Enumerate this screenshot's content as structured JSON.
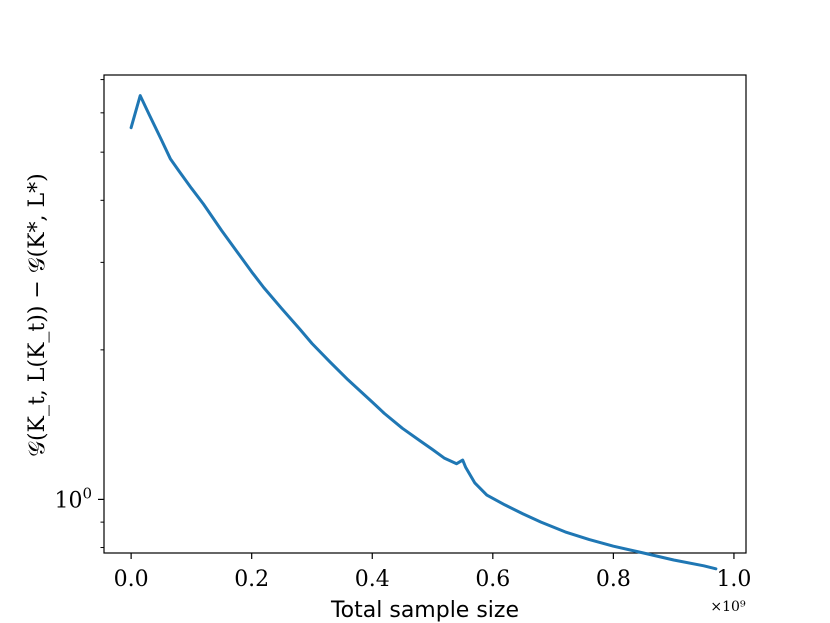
{
  "chart_data": {
    "type": "line",
    "xlabel": "Total sample size",
    "ylabel": "𝒢(K_t, L(K_t)) − 𝒢(K*, L*)",
    "x_offset_label": "×10⁹",
    "x_ticks": [
      "0.0",
      "0.2",
      "0.4",
      "0.6",
      "0.8",
      "1.0"
    ],
    "y_ticks": [
      {
        "base": "10",
        "exp": "0"
      }
    ],
    "xlim": [
      -0.045,
      1.02
    ],
    "ylim": [
      0.78,
      7.15
    ],
    "y_scale": "log",
    "grid": false,
    "series": [
      {
        "color": "#1f77b4",
        "x": [
          0.0,
          0.015,
          0.03,
          0.05,
          0.065,
          0.08,
          0.1,
          0.12,
          0.15,
          0.18,
          0.2,
          0.22,
          0.25,
          0.28,
          0.3,
          0.33,
          0.36,
          0.4,
          0.42,
          0.45,
          0.48,
          0.5,
          0.52,
          0.54,
          0.55,
          0.555,
          0.57,
          0.59,
          0.62,
          0.65,
          0.68,
          0.72,
          0.76,
          0.8,
          0.85,
          0.9,
          0.95,
          0.97
        ],
        "y": [
          5.6,
          6.5,
          5.95,
          5.3,
          4.85,
          4.57,
          4.23,
          3.93,
          3.48,
          3.1,
          2.87,
          2.67,
          2.42,
          2.2,
          2.06,
          1.89,
          1.74,
          1.57,
          1.49,
          1.39,
          1.31,
          1.26,
          1.21,
          1.18,
          1.2,
          1.16,
          1.08,
          1.02,
          0.975,
          0.935,
          0.9,
          0.86,
          0.83,
          0.805,
          0.78,
          0.755,
          0.735,
          0.725
        ]
      }
    ]
  }
}
